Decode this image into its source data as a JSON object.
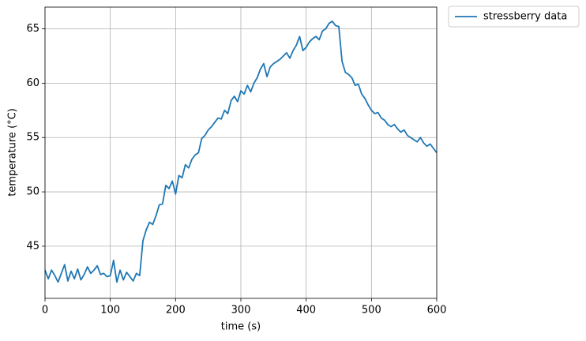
{
  "chart_data": {
    "type": "line",
    "xlabel": "time (s)",
    "ylabel": "temperature (°C)",
    "x": [
      0,
      5,
      10,
      15,
      20,
      25,
      30,
      35,
      40,
      45,
      50,
      55,
      60,
      65,
      70,
      75,
      80,
      85,
      90,
      95,
      100,
      105,
      110,
      115,
      120,
      125,
      130,
      135,
      140,
      145,
      150,
      155,
      160,
      165,
      170,
      175,
      180,
      185,
      190,
      195,
      200,
      205,
      210,
      215,
      220,
      225,
      230,
      235,
      240,
      245,
      250,
      255,
      260,
      265,
      270,
      275,
      280,
      285,
      290,
      295,
      300,
      305,
      310,
      315,
      320,
      325,
      330,
      335,
      340,
      345,
      350,
      355,
      360,
      365,
      370,
      375,
      380,
      385,
      390,
      395,
      400,
      405,
      410,
      415,
      420,
      425,
      430,
      435,
      440,
      445,
      450,
      455,
      460,
      465,
      470,
      475,
      480,
      485,
      490,
      495,
      500,
      505,
      510,
      515,
      520,
      525,
      530,
      535,
      540,
      545,
      550,
      555,
      560,
      565,
      570,
      575,
      580,
      585,
      590,
      595,
      600
    ],
    "series": [
      {
        "name": "stressberry data",
        "color": "#1f77b4",
        "values": [
          42.8,
          42.0,
          42.8,
          42.3,
          41.7,
          42.5,
          43.3,
          41.8,
          42.7,
          42.0,
          42.9,
          41.9,
          42.4,
          43.1,
          42.5,
          42.8,
          43.2,
          42.4,
          42.5,
          42.2,
          42.3,
          43.7,
          41.7,
          42.8,
          41.9,
          42.6,
          42.2,
          41.8,
          42.5,
          42.3,
          45.5,
          46.5,
          47.2,
          47.0,
          47.8,
          48.8,
          48.9,
          50.6,
          50.3,
          51.0,
          49.8,
          51.5,
          51.3,
          52.5,
          52.2,
          53.0,
          53.4,
          53.6,
          54.9,
          55.2,
          55.7,
          56.0,
          56.4,
          56.8,
          56.7,
          57.5,
          57.2,
          58.4,
          58.8,
          58.3,
          59.3,
          59.0,
          59.8,
          59.2,
          60.0,
          60.5,
          61.3,
          61.8,
          60.6,
          61.5,
          61.8,
          62.0,
          62.2,
          62.5,
          62.8,
          62.3,
          63.0,
          63.5,
          64.3,
          63.0,
          63.3,
          63.8,
          64.1,
          64.3,
          64.0,
          64.8,
          65.0,
          65.5,
          65.7,
          65.3,
          65.2,
          62.0,
          61.0,
          60.8,
          60.5,
          59.8,
          59.9,
          59.0,
          58.6,
          58.0,
          57.5,
          57.2,
          57.3,
          56.8,
          56.6,
          56.2,
          56.0,
          56.2,
          55.8,
          55.5,
          55.7,
          55.2,
          55.0,
          54.8,
          54.6,
          55.0,
          54.5,
          54.2,
          54.4,
          54.0,
          53.6
        ]
      }
    ],
    "xlim": [
      0,
      600
    ],
    "xticks": [
      0,
      100,
      200,
      300,
      400,
      500,
      600
    ],
    "ylim": [
      40.2,
      67
    ],
    "yticks": [
      45,
      50,
      55,
      60,
      65
    ],
    "grid": true,
    "legend": "outside upper right"
  }
}
